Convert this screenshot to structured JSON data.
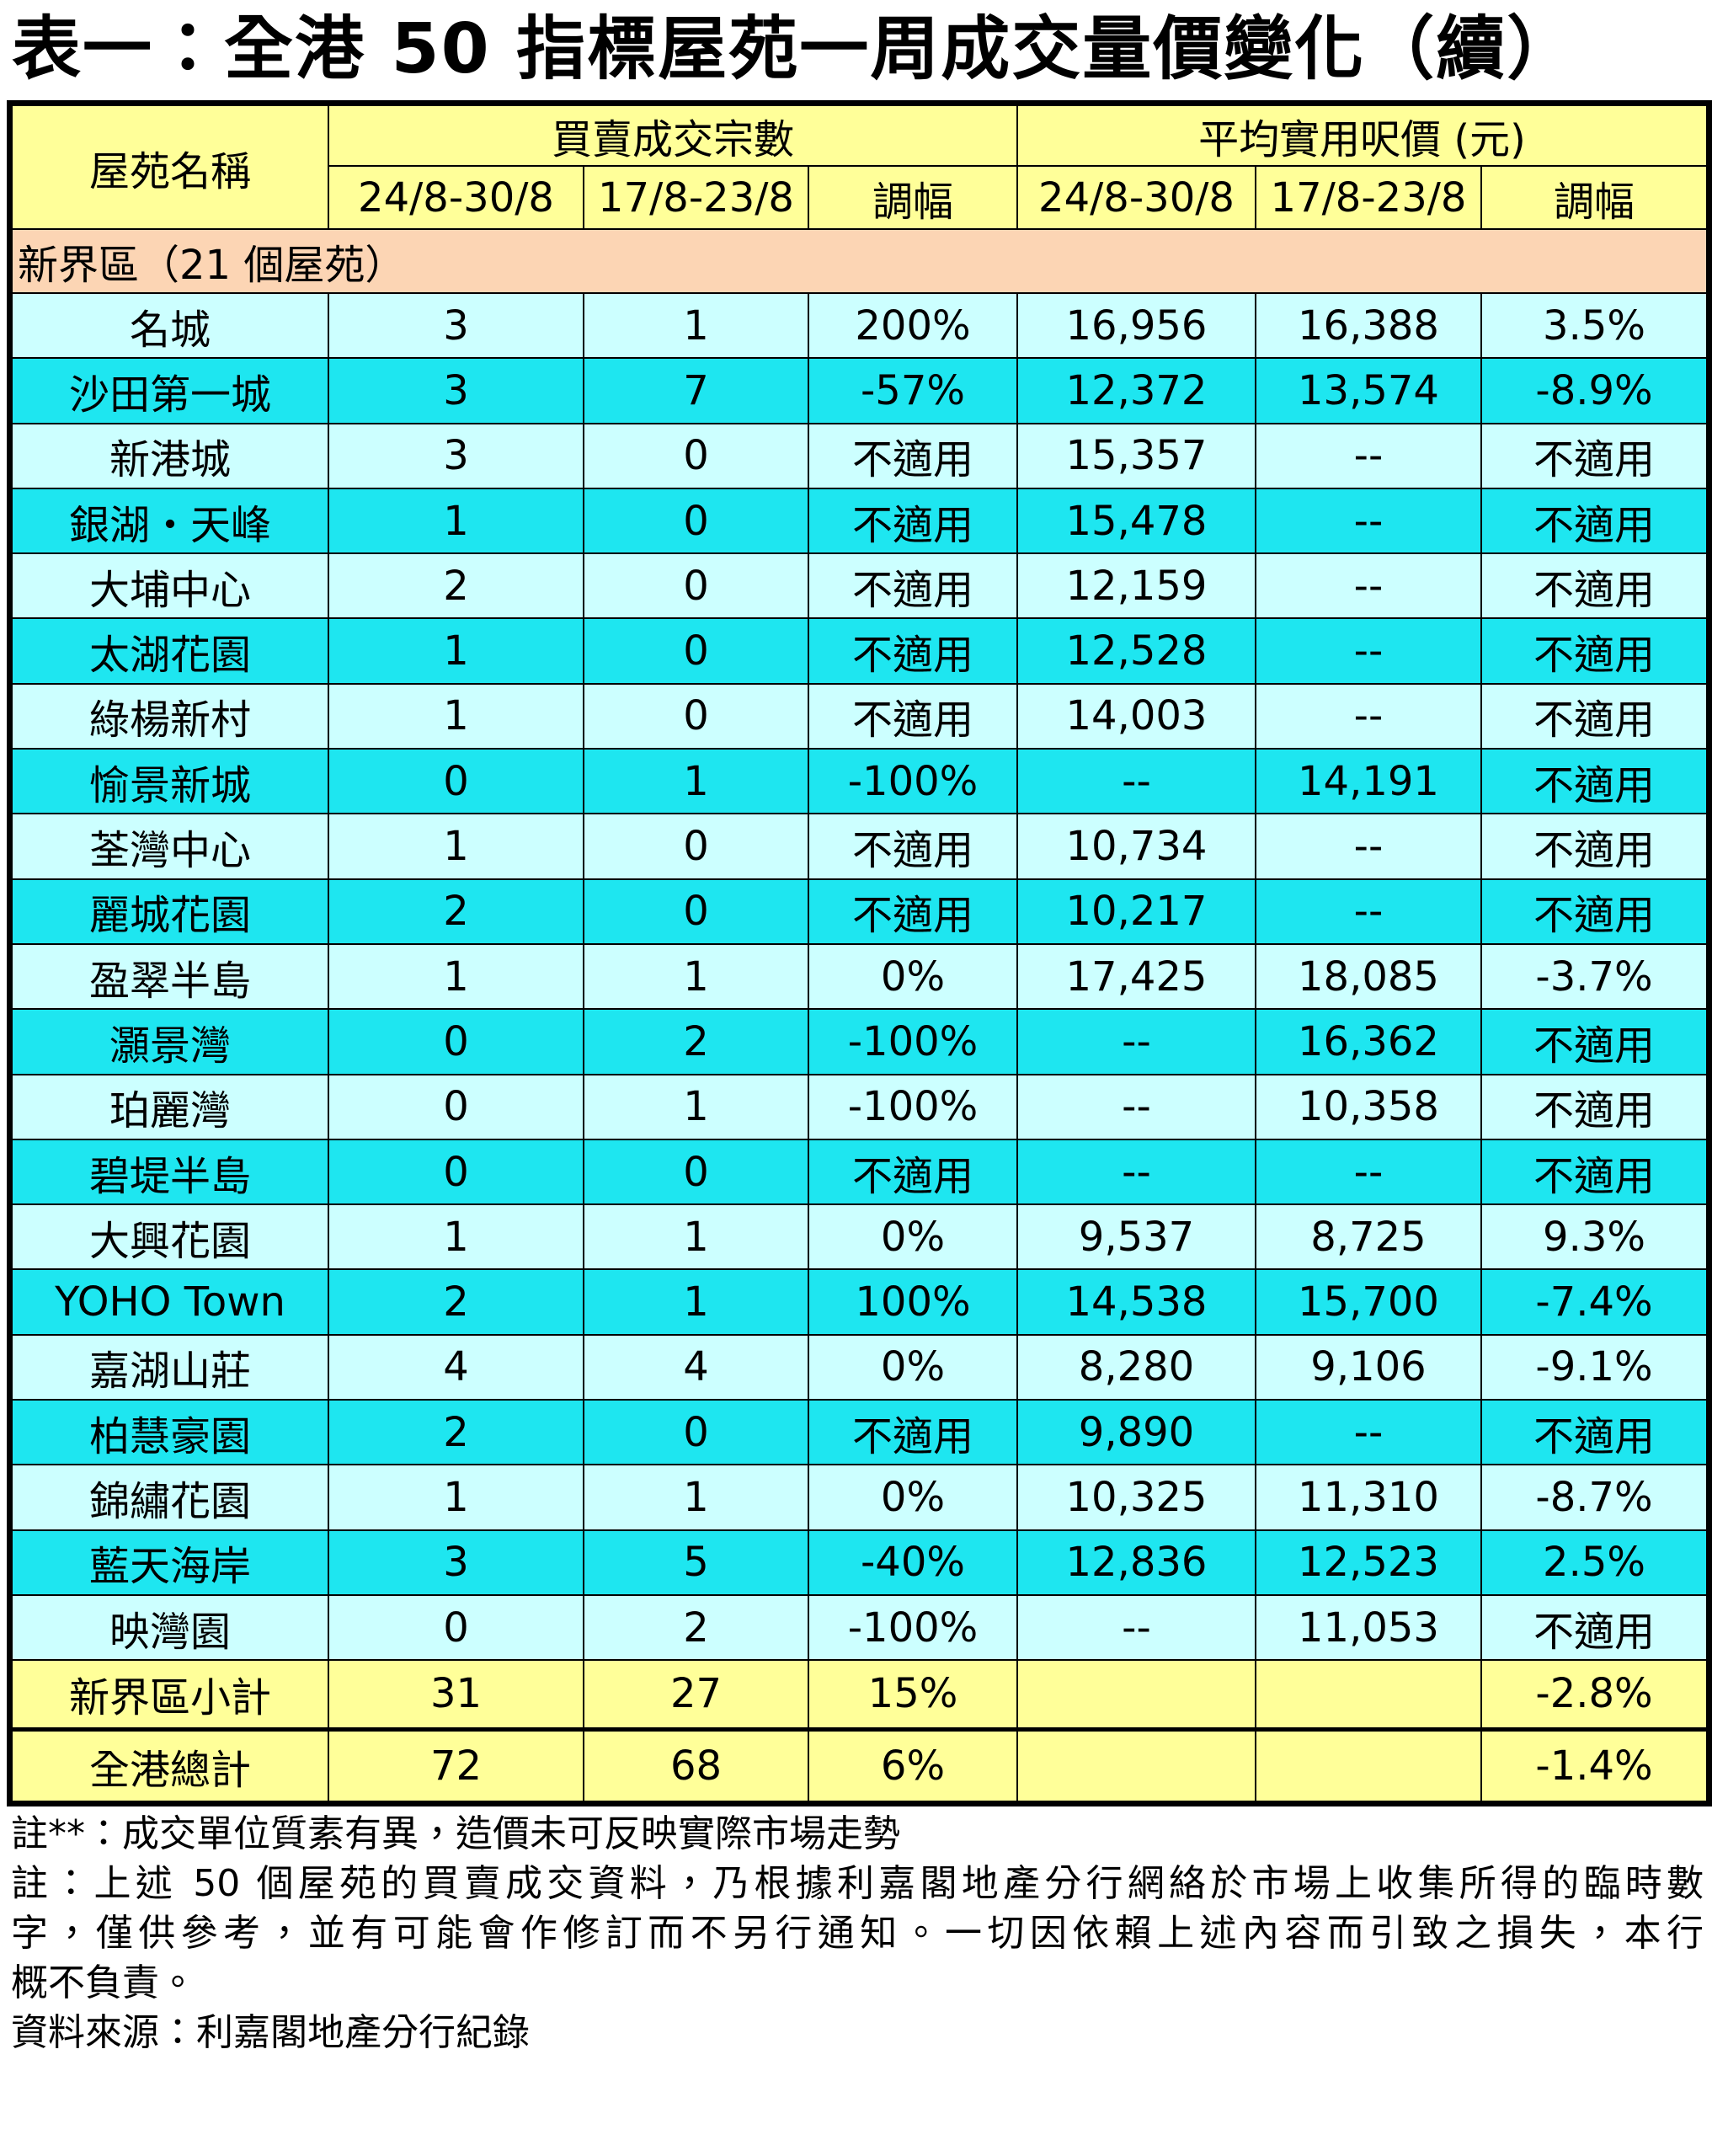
{
  "title": "表一：全港 50 指標屋苑一周成交量價變化（續）",
  "table": {
    "header": {
      "estate": "屋苑名稱",
      "groups": [
        "買賣成交宗數",
        "平均實用呎價 (元)"
      ],
      "columns": [
        "24/8-30/8",
        "17/8-23/8",
        "調幅",
        "24/8-30/8",
        "17/8-23/8",
        "調幅"
      ]
    },
    "section": "新界區（21 個屋苑）",
    "rows": [
      [
        "名城",
        "3",
        "1",
        "200%",
        "16,956",
        "16,388",
        "3.5%"
      ],
      [
        "沙田第一城",
        "3",
        "7",
        "-57%",
        "12,372",
        "13,574",
        "-8.9%"
      ],
      [
        "新港城",
        "3",
        "0",
        "不適用",
        "15,357",
        "--",
        "不適用"
      ],
      [
        "銀湖・天峰",
        "1",
        "0",
        "不適用",
        "15,478",
        "--",
        "不適用"
      ],
      [
        "大埔中心",
        "2",
        "0",
        "不適用",
        "12,159",
        "--",
        "不適用"
      ],
      [
        "太湖花園",
        "1",
        "0",
        "不適用",
        "12,528",
        "--",
        "不適用"
      ],
      [
        "綠楊新村",
        "1",
        "0",
        "不適用",
        "14,003",
        "--",
        "不適用"
      ],
      [
        "愉景新城",
        "0",
        "1",
        "-100%",
        "--",
        "14,191",
        "不適用"
      ],
      [
        "荃灣中心",
        "1",
        "0",
        "不適用",
        "10,734",
        "--",
        "不適用"
      ],
      [
        "麗城花園",
        "2",
        "0",
        "不適用",
        "10,217",
        "--",
        "不適用"
      ],
      [
        "盈翠半島",
        "1",
        "1",
        "0%",
        "17,425",
        "18,085",
        "-3.7%"
      ],
      [
        "灝景灣",
        "0",
        "2",
        "-100%",
        "--",
        "16,362",
        "不適用"
      ],
      [
        "珀麗灣",
        "0",
        "1",
        "-100%",
        "--",
        "10,358",
        "不適用"
      ],
      [
        "碧堤半島",
        "0",
        "0",
        "不適用",
        "--",
        "--",
        "不適用"
      ],
      [
        "大興花園",
        "1",
        "1",
        "0%",
        "9,537",
        "8,725",
        "9.3%"
      ],
      [
        "YOHO Town",
        "2",
        "1",
        "100%",
        "14,538",
        "15,700",
        "-7.4%"
      ],
      [
        "嘉湖山莊",
        "4",
        "4",
        "0%",
        "8,280",
        "9,106",
        "-9.1%"
      ],
      [
        "柏慧豪園",
        "2",
        "0",
        "不適用",
        "9,890",
        "--",
        "不適用"
      ],
      [
        "錦繡花園",
        "1",
        "1",
        "0%",
        "10,325",
        "11,310",
        "-8.7%"
      ],
      [
        "藍天海岸",
        "3",
        "5",
        "-40%",
        "12,836",
        "12,523",
        "2.5%"
      ],
      [
        "映灣園",
        "0",
        "2",
        "-100%",
        "--",
        "11,053",
        "不適用"
      ]
    ],
    "subtotal": [
      "新界區小計",
      "31",
      "27",
      "15%",
      null,
      null,
      "-2.8%"
    ],
    "total": [
      "全港總計",
      "72",
      "68",
      "6%",
      null,
      null,
      "-1.4%"
    ]
  },
  "notes": [
    "註**：成交單位質素有異，造價未可反映實際市場走勢",
    "註：上述 50 個屋苑的買賣成交資料，乃根據利嘉閣地產分行網絡於市場上收集所得的臨時數",
    "字，僅供參考，並有可能會作修訂而不另行通知。一切因依賴上述內容而引致之損失，本行",
    "概不負責。",
    "資料來源：利嘉閣地產分行紀錄"
  ]
}
